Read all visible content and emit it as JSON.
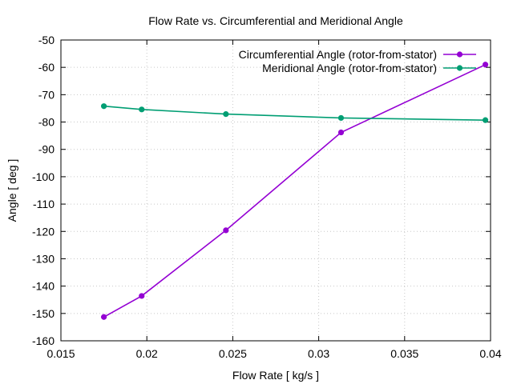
{
  "chart_data": {
    "type": "line",
    "title": "Flow Rate vs. Circumferential and Meridional Angle",
    "xlabel": "Flow Rate [ kg/s ]",
    "ylabel": "Angle [ deg ]",
    "xlim": [
      0.015,
      0.04
    ],
    "ylim": [
      -160,
      -50
    ],
    "xticks": [
      0.015,
      0.02,
      0.025,
      0.03,
      0.035,
      0.04
    ],
    "xtick_labels": [
      "0.015",
      "0.02",
      "0.025",
      "0.03",
      "0.035",
      "0.04"
    ],
    "yticks": [
      -160,
      -150,
      -140,
      -130,
      -120,
      -110,
      -100,
      -90,
      -80,
      -70,
      -60,
      -50
    ],
    "ytick_labels": [
      "-160",
      "-150",
      "-140",
      "-130",
      "-120",
      "-110",
      "-100",
      "-90",
      "-80",
      "-70",
      "-60",
      "-50"
    ],
    "grid": true,
    "legend_position": "top-right",
    "series": [
      {
        "name": "Circumferential Angle (rotor-from-stator)",
        "color": "#9400d3",
        "x": [
          0.0175,
          0.0197,
          0.0246,
          0.0313,
          0.0397
        ],
        "y": [
          -151.3,
          -143.6,
          -119.6,
          -83.8,
          -59.0
        ]
      },
      {
        "name": "Meridional Angle (rotor-from-stator)",
        "color": "#009e73",
        "x": [
          0.0175,
          0.0197,
          0.0246,
          0.0313,
          0.0397
        ],
        "y": [
          -74.2,
          -75.4,
          -77.1,
          -78.5,
          -79.3
        ]
      }
    ]
  }
}
